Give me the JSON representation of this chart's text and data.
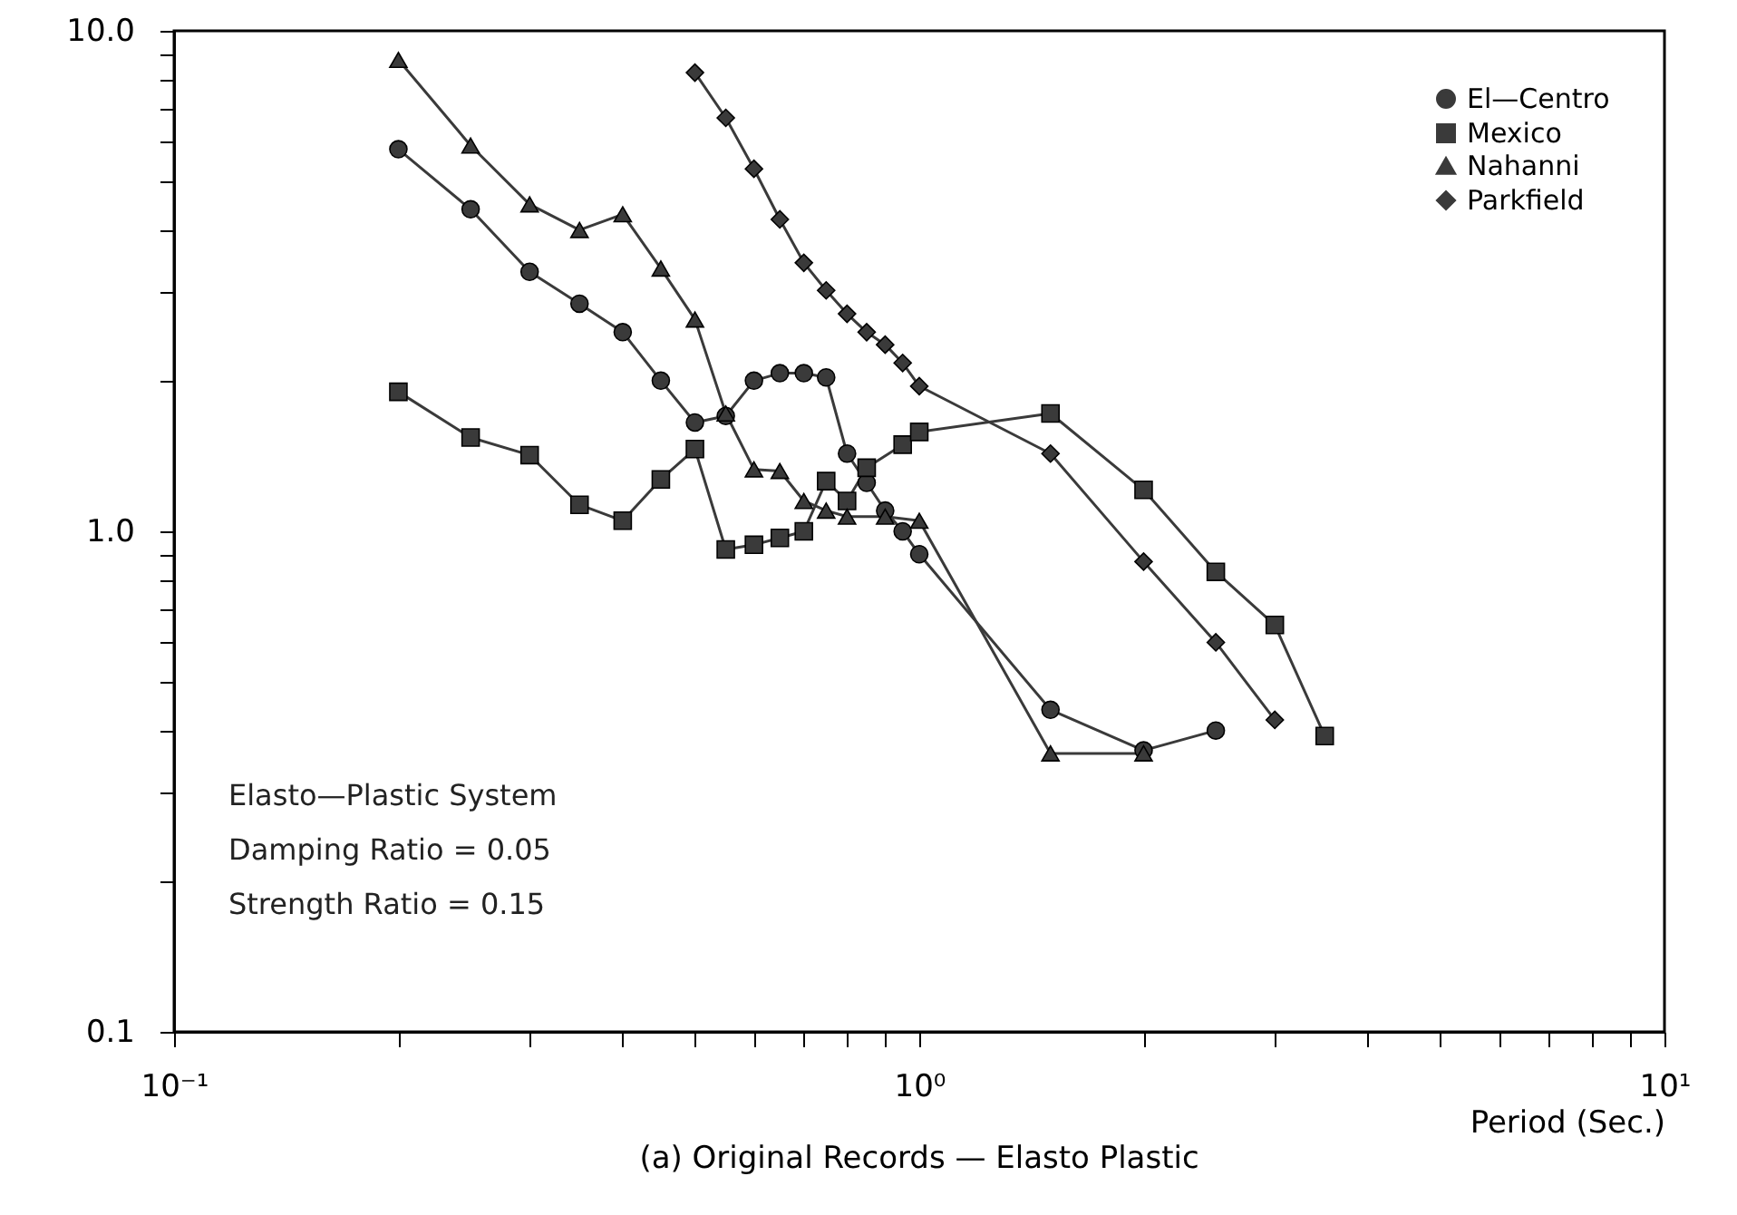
{
  "chart_data": {
    "type": "line",
    "title": "(a) Original Records — Elasto Plastic",
    "xlabel": "Period (Sec.)",
    "log": "xy",
    "grid": false,
    "legend": "top right",
    "line_style": "solid",
    "xlim": [
      0.1,
      10
    ],
    "ylim": [
      0.1,
      10
    ],
    "xticks": [
      {
        "value": 0.1,
        "label": "10⁻¹"
      },
      {
        "value": 0.2,
        "label": null
      },
      {
        "value": 0.3,
        "label": null
      },
      {
        "value": 0.4,
        "label": null
      },
      {
        "value": 0.5,
        "label": null
      },
      {
        "value": 0.6,
        "label": null
      },
      {
        "value": 0.7,
        "label": null
      },
      {
        "value": 0.8,
        "label": null
      },
      {
        "value": 0.9,
        "label": null
      },
      {
        "value": 1,
        "label": "10⁰"
      },
      {
        "value": 2,
        "label": null
      },
      {
        "value": 3,
        "label": null
      },
      {
        "value": 4,
        "label": null
      },
      {
        "value": 5,
        "label": null
      },
      {
        "value": 6,
        "label": null
      },
      {
        "value": 7,
        "label": null
      },
      {
        "value": 8,
        "label": null
      },
      {
        "value": 9,
        "label": null
      },
      {
        "value": 10,
        "label": "10¹"
      }
    ],
    "yticks": [
      {
        "value": 0.1,
        "label": "0.1"
      },
      {
        "value": 0.2,
        "label": null
      },
      {
        "value": 0.3,
        "label": null
      },
      {
        "value": 0.4,
        "label": null
      },
      {
        "value": 0.5,
        "label": null
      },
      {
        "value": 0.6,
        "label": null
      },
      {
        "value": 0.7,
        "label": null
      },
      {
        "value": 0.8,
        "label": null
      },
      {
        "value": 0.9,
        "label": null
      },
      {
        "value": 1,
        "label": "1.0"
      },
      {
        "value": 2,
        "label": null
      },
      {
        "value": 3,
        "label": null
      },
      {
        "value": 4,
        "label": null
      },
      {
        "value": 5,
        "label": null
      },
      {
        "value": 6,
        "label": null
      },
      {
        "value": 7,
        "label": null
      },
      {
        "value": 8,
        "label": null
      },
      {
        "value": 9,
        "label": null
      },
      {
        "value": 10,
        "label": "10.0"
      }
    ],
    "annotations": [
      "Elasto—Plastic System",
      "Damping Ratio = 0.05",
      "Strength Ratio = 0.15"
    ],
    "series": [
      {
        "name": "El—Centro",
        "color": "#3a3a3a",
        "marker": "circle",
        "x": [
          0.2,
          0.25,
          0.3,
          0.35,
          0.4,
          0.45,
          0.5,
          0.55,
          0.6,
          0.65,
          0.7,
          0.75,
          0.8,
          0.85,
          0.9,
          0.95,
          1.0,
          1.5,
          2.0,
          2.5
        ],
        "values": [
          5.8,
          4.4,
          3.3,
          2.85,
          2.5,
          2.0,
          1.65,
          1.7,
          2.0,
          2.07,
          2.07,
          2.03,
          1.43,
          1.25,
          1.1,
          1.0,
          0.9,
          0.44,
          0.365,
          0.4
        ]
      },
      {
        "name": "Mexico",
        "color": "#3a3a3a",
        "marker": "square",
        "x": [
          0.2,
          0.25,
          0.3,
          0.35,
          0.4,
          0.45,
          0.5,
          0.55,
          0.6,
          0.65,
          0.7,
          0.75,
          0.8,
          0.85,
          0.95,
          1.0,
          1.5,
          2.0,
          2.5,
          3.0,
          3.5
        ],
        "values": [
          1.9,
          1.54,
          1.42,
          1.13,
          1.05,
          1.27,
          1.46,
          0.92,
          0.94,
          0.97,
          1.0,
          1.26,
          1.15,
          1.34,
          1.49,
          1.58,
          1.72,
          1.21,
          0.83,
          0.65,
          0.39
        ]
      },
      {
        "name": "Nahanni",
        "color": "#3a3a3a",
        "marker": "triangle",
        "x": [
          0.2,
          0.25,
          0.3,
          0.35,
          0.4,
          0.45,
          0.5,
          0.55,
          0.6,
          0.65,
          0.7,
          0.75,
          0.8,
          0.9,
          1.0,
          1.5,
          2.0
        ],
        "values": [
          8.75,
          5.9,
          4.5,
          4.0,
          4.3,
          3.35,
          2.65,
          1.72,
          1.33,
          1.32,
          1.15,
          1.1,
          1.07,
          1.07,
          1.05,
          0.36,
          0.36
        ]
      },
      {
        "name": "Parkfield",
        "color": "#3a3a3a",
        "marker": "diamond",
        "x": [
          0.5,
          0.55,
          0.6,
          0.65,
          0.7,
          0.75,
          0.8,
          0.85,
          0.9,
          0.95,
          1.0,
          1.5,
          2.0,
          2.5,
          3.0
        ],
        "values": [
          8.25,
          6.7,
          5.3,
          4.2,
          3.44,
          3.03,
          2.72,
          2.5,
          2.36,
          2.17,
          1.95,
          1.43,
          0.87,
          0.6,
          0.42
        ]
      }
    ]
  }
}
